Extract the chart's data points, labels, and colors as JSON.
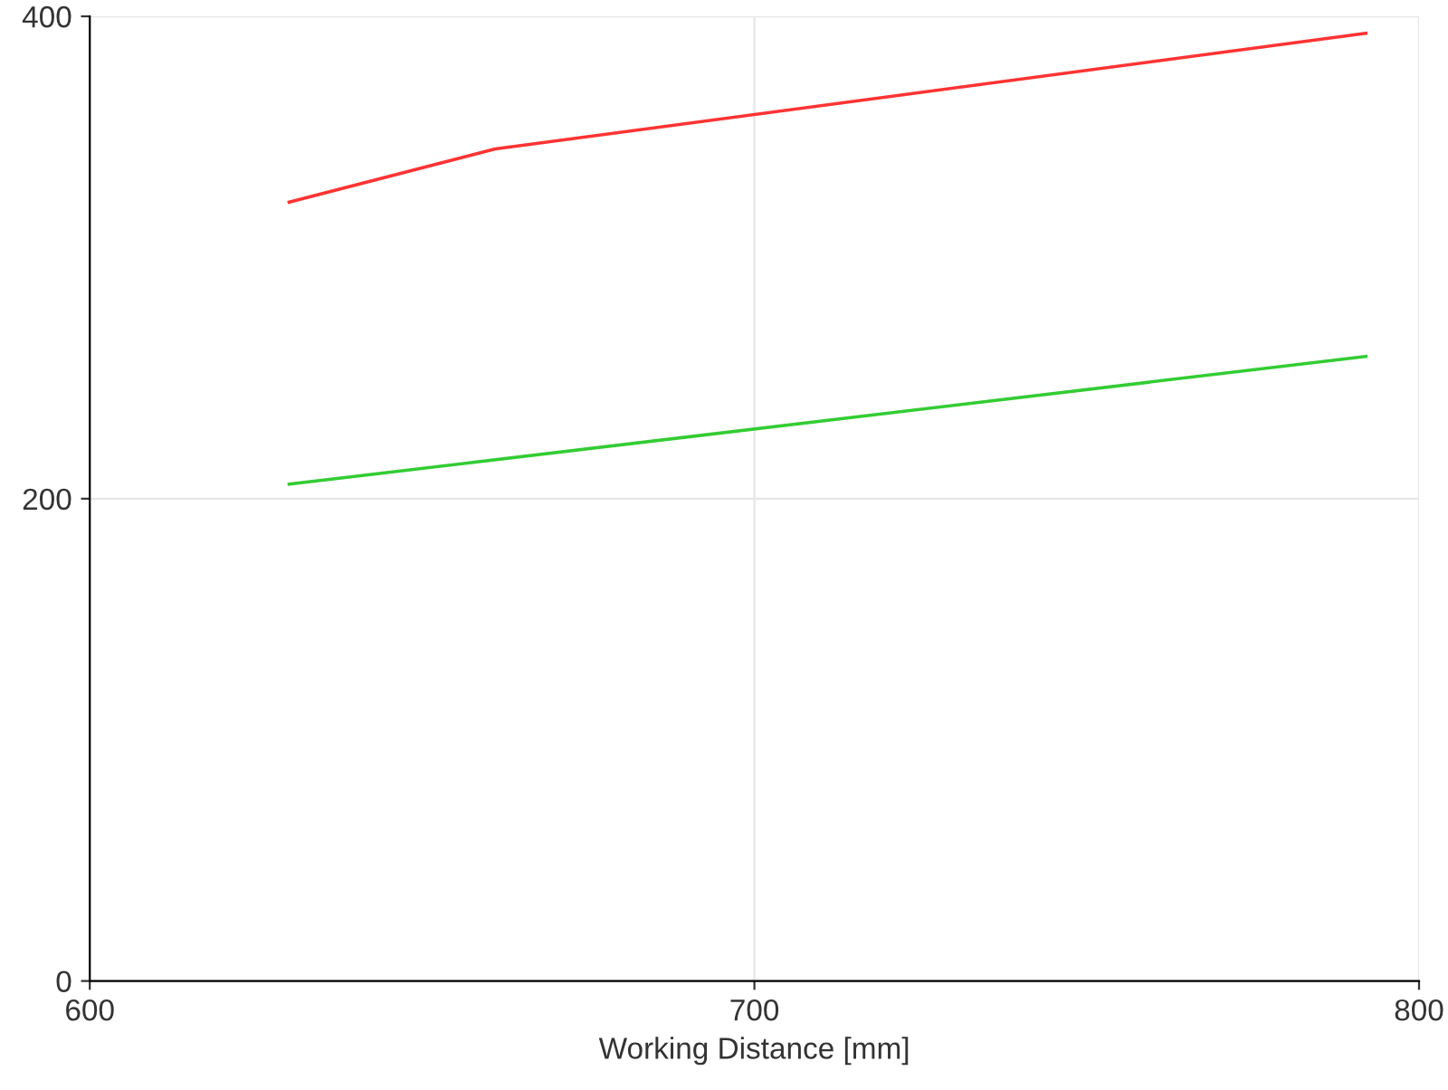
{
  "chart_data": {
    "type": "line",
    "xlabel": "Working Distance [mm]",
    "xlim": [
      600,
      800
    ],
    "xticks": [
      600,
      700,
      800
    ],
    "ylim": [
      0,
      400
    ],
    "yticks": [
      0,
      200,
      400
    ],
    "grid": true,
    "legend": false,
    "marker": "none",
    "line_style": "solid",
    "series": [
      {
        "color": "#ff3333",
        "x": [
          630,
          661,
          792
        ],
        "values": [
          323,
          345,
          393
        ]
      },
      {
        "color": "#33cc33",
        "x": [
          630,
          792
        ],
        "values": [
          206,
          259
        ]
      }
    ]
  }
}
